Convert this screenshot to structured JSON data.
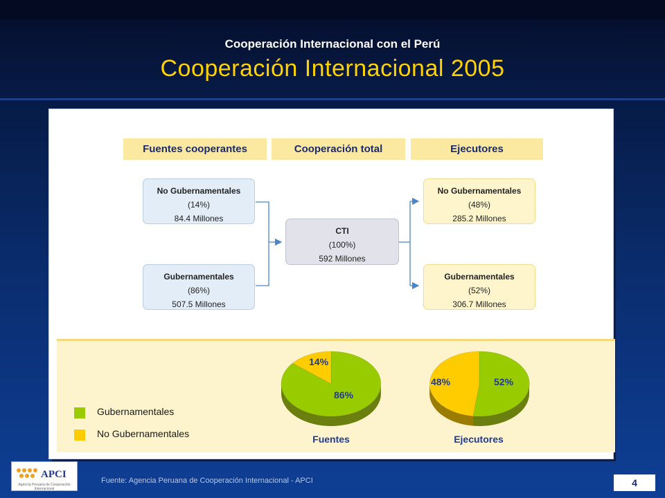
{
  "header": {
    "subtitle": "Cooperación Internacional con el Perú",
    "title": "Cooperación Internacional 2005"
  },
  "sections": {
    "fuentes": "Fuentes cooperantes",
    "total": "Cooperación total",
    "ejecutores": "Ejecutores"
  },
  "nodes": {
    "src_nogub": {
      "title": "No Gubernamentales",
      "pct": "(14%)",
      "amount": "84.4 Millones"
    },
    "src_gub": {
      "title": "Gubernamentales",
      "pct": "(86%)",
      "amount": "507.5 Millones"
    },
    "cti": {
      "title": "CTI",
      "pct": "(100%)",
      "amount": "592 Millones"
    },
    "exe_nogub": {
      "title": "No Gubernamentales",
      "pct": "(48%)",
      "amount": "285.2 Millones"
    },
    "exe_gub": {
      "title": "Gubernamentales",
      "pct": "(52%)",
      "amount": "306.7 Millones"
    }
  },
  "legend": {
    "gub": "Gubernamentales",
    "nogub": "No Gubernamentales"
  },
  "colors": {
    "gubernamentales": "#99cc00",
    "no_gubernamentales": "#ffcc00",
    "gub_side": "#6b7f0f",
    "nogub_side": "#9a7d00"
  },
  "chart_data": [
    {
      "type": "pie",
      "caption": "Fuentes",
      "slices": [
        {
          "label": "Gubernamentales",
          "value": 86,
          "display": "86%"
        },
        {
          "label": "No Gubernamentales",
          "value": 14,
          "display": "14%"
        }
      ]
    },
    {
      "type": "pie",
      "caption": "Ejecutores",
      "slices": [
        {
          "label": "Gubernamentales",
          "value": 52,
          "display": "52%"
        },
        {
          "label": "No Gubernamentales",
          "value": 48,
          "display": "48%"
        }
      ]
    }
  ],
  "logo": {
    "text": "APCI",
    "subtext": "Agencia Peruana de Cooperación Internacional"
  },
  "footer": {
    "source": "Fuente: Agencia Peruana  de Cooperación Internacional - APCI",
    "page": "4"
  }
}
